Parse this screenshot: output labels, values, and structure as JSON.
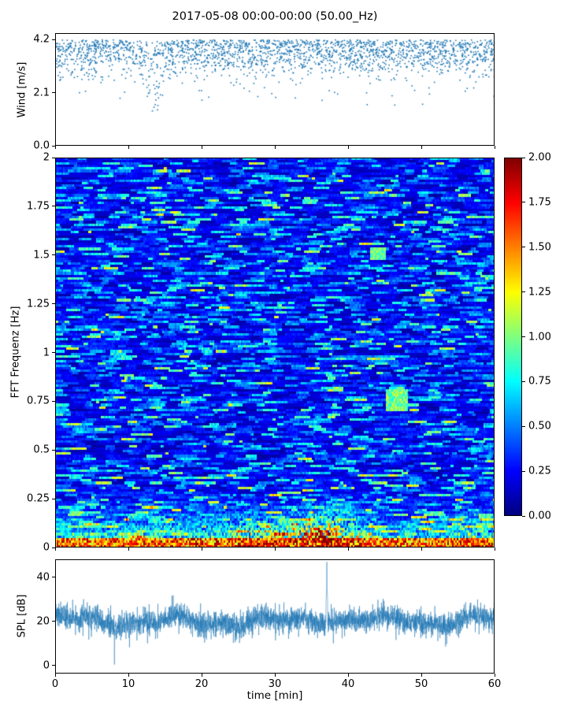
{
  "title": "2017-05-08 00:00-00:00 (50.00_Hz)",
  "xlabel": "time [min]",
  "colors": {
    "series": "#1f77b4",
    "axis": "#000000",
    "background": "#ffffff"
  },
  "axes": {
    "x": {
      "min": 0,
      "max": 60,
      "tick_values": [
        0,
        10,
        20,
        30,
        40,
        50,
        60
      ],
      "tick_labels": [
        "0",
        "10",
        "20",
        "30",
        "40",
        "50",
        "60"
      ]
    }
  },
  "chart_data": [
    {
      "type": "scatter",
      "name": "wind-speed",
      "ylabel": "Wind [m/s]",
      "ylim": [
        0,
        4.45
      ],
      "ytick_values": [
        0.0,
        2.1,
        4.2
      ],
      "yticks": [
        "0.0",
        "2.1",
        "4.2"
      ],
      "x_range": [
        0,
        60
      ],
      "marker": "point",
      "description": "Wind speed scatter: dense band between ~3 and 4.2 m/s capped near 4.2, sparse outliers down to ~1 m/s, pronounced dip cluster reaching ~0.7 m/s around 12-15 min",
      "synthesis": {
        "points": 2300,
        "top": 4.18,
        "spread": 0.45,
        "dip_center_min": 13.5,
        "dip_half_width_min": 1.9,
        "dip_depth": 3.1
      }
    },
    {
      "type": "heatmap",
      "name": "fft-spectrogram",
      "ylabel": "FFT Frequenz [Hz]",
      "ylim": [
        0,
        2
      ],
      "ytick_values": [
        0,
        0.25,
        0.5,
        0.75,
        1,
        1.25,
        1.5,
        1.75,
        2
      ],
      "yticks": [
        "0",
        "0.25",
        "0.5",
        "0.75",
        "1",
        "1.25",
        "1.5",
        "1.75",
        "2"
      ],
      "colormap": "jet",
      "value_range": [
        0,
        2
      ],
      "colorbar_ticks": [
        "2.00",
        "1.75",
        "1.50",
        "1.25",
        "1.00",
        "0.75",
        "0.50",
        "0.25",
        "0.00"
      ],
      "description": "Spectrogram dominated by low amplitudes (blue, ~0.1-0.5) with horizontal cyan/green streaks; strong energy band below ~0.3 Hz (green/yellow/red) peaking near 34-40 min with values up to 2.0; dark-red strip along 0 Hz; bright green patch near 0.75 Hz at 46-48 min; green streak near 1.5 Hz at 43-45 min",
      "synthesis": {
        "cols": 279,
        "rows": 160,
        "low_band_hz": 0.34,
        "hot_spot_min": 36.8,
        "secondary_hot_min": 27,
        "patch_t": [
          45.3,
          48.2
        ],
        "patch_f": [
          0.7,
          0.81
        ],
        "streak_t": [
          43.0,
          45.2
        ],
        "streak_f": [
          1.48,
          1.54
        ]
      }
    },
    {
      "type": "line",
      "name": "spl",
      "ylabel": "SPL [dB]",
      "ylim": [
        -3.6,
        48.2
      ],
      "ytick_values": [
        0,
        20,
        40
      ],
      "yticks": [
        "0",
        "20",
        "40"
      ],
      "baseline_db": 20,
      "noise_band_db": 8,
      "spike": {
        "time_min": 37.1,
        "value_db": 47
      },
      "dip": {
        "time_min": 8.1,
        "value_db": 0
      },
      "description": "Noisy SPL trace fluctuating around ~20 dB (band roughly 12-30 dB), single sharp spike to ~47 dB at 37 min, single dip to 0 dB near 8 min, slightly elevated around 35-40 and 48 min"
    }
  ]
}
